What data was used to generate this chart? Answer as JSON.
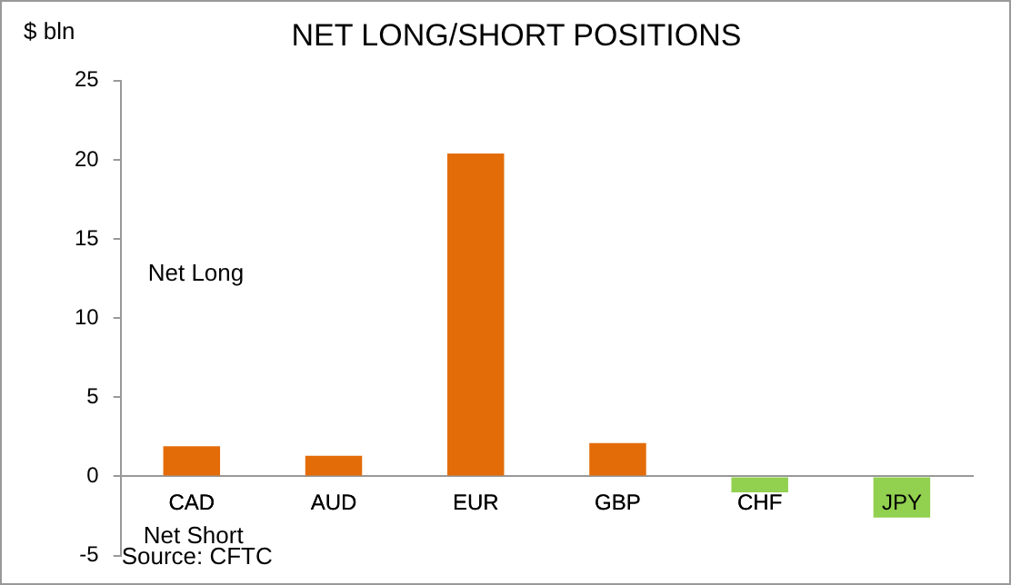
{
  "chart_data": {
    "type": "bar",
    "title": "NET LONG/SHORT POSITIONS",
    "ylabel": "$ bln",
    "categories": [
      "CAD",
      "AUD",
      "EUR",
      "GBP",
      "CHF",
      "JPY"
    ],
    "values": [
      1.9,
      1.3,
      20.4,
      2.1,
      -1.0,
      -2.6
    ],
    "colors": [
      "#e36c09",
      "#e36c09",
      "#e36c09",
      "#e36c09",
      "#92d050",
      "#92d050"
    ],
    "ylim": [
      -5,
      25
    ],
    "yticks": [
      -5,
      0,
      5,
      10,
      15,
      20,
      25
    ],
    "grid": false,
    "legend": false,
    "annotations": [
      "Net Long",
      "Net Short",
      "Source: CFTC"
    ]
  }
}
